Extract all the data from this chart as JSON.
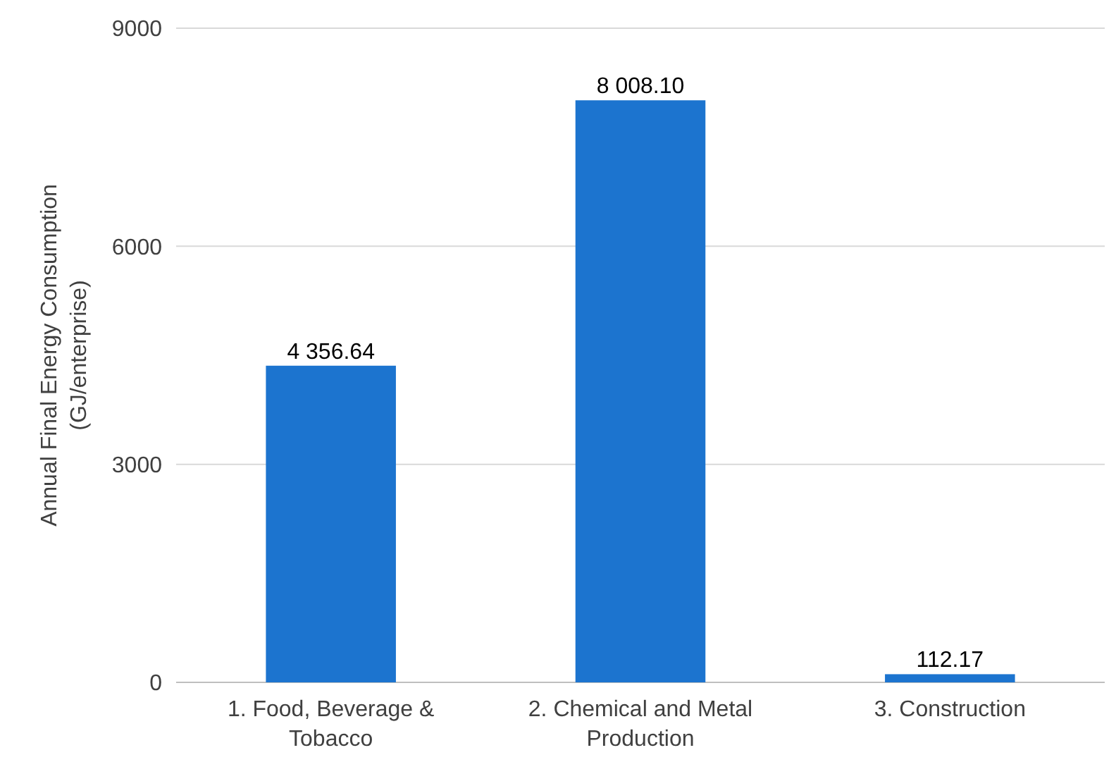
{
  "chart_data": {
    "type": "bar",
    "ylabel": "Annual Final Energy Consumption (GJ/enterprise)",
    "categories": [
      "1. Food, Beverage & Tobacco",
      "2. Chemical and Metal Production",
      "3. Construction"
    ],
    "values": [
      4356.64,
      8008.1,
      112.17
    ],
    "value_labels": [
      "4 356.64",
      "8 008.10",
      "112.17"
    ],
    "color": "#1c74cf",
    "ylim": [
      0,
      9000
    ],
    "yticks": [
      0,
      3000,
      6000,
      9000
    ],
    "grid": "y"
  }
}
